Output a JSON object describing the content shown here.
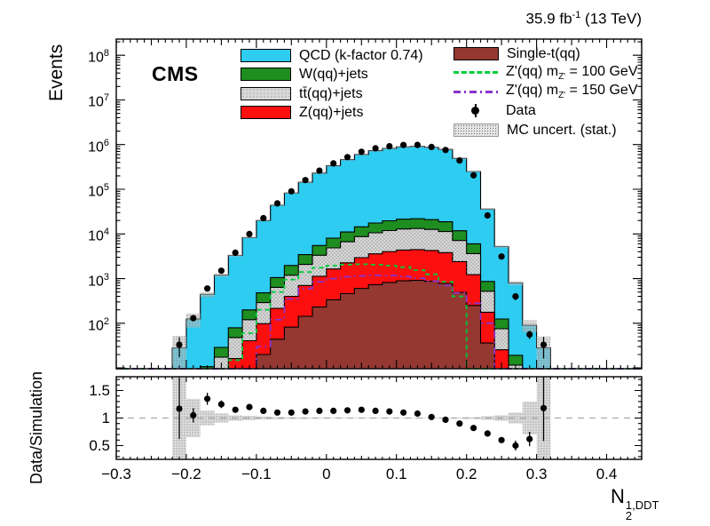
{
  "header": {
    "lumi_prefix": "35.9 fb",
    "lumi_sup": "-1",
    "lumi_suffix": " (13 TeV)",
    "experiment": "CMS"
  },
  "axes": {
    "main_y_title": "Events",
    "ratio_y_title": "Data/Simulation",
    "x_title_base": "N",
    "x_title_sub": "2",
    "x_title_sup": "1,DDT",
    "y_tick_base": "10",
    "y_tick_exponents": [
      8,
      7,
      6,
      5,
      4,
      3,
      2
    ],
    "x_tick_labels": [
      "−0.3",
      "−0.2",
      "−0.1",
      "0",
      "0.1",
      "0.2",
      "0.3",
      "0.4"
    ],
    "x_tick_values": [
      -0.3,
      -0.2,
      -0.1,
      0,
      0.1,
      0.2,
      0.3,
      0.4
    ],
    "ratio_tick_labels": [
      "1.5",
      "1",
      "0.5"
    ],
    "ratio_tick_values": [
      1.5,
      1,
      0.5
    ]
  },
  "legend": {
    "qcd": "QCD (k-factor 0.74)",
    "w_jets": "W(qq)+jets",
    "ttbar": "tt̄(qq)+jets",
    "z_jets": "Z(qq)+jets",
    "single_t": "Single-t(qq)",
    "zp100": {
      "pre": "Z'(qq) m",
      "sub": "Z'",
      "post": " = 100 GeV"
    },
    "zp150": {
      "pre": "Z'(qq) m",
      "sub": "Z'",
      "post": " = 150 GeV"
    },
    "data": "Data",
    "unc": "MC uncert. (stat.)"
  },
  "colors": {
    "qcd": "#2dccf0",
    "w_jets": "#1e8e20",
    "ttbar": "#d8d8d8",
    "ttbar_dot": "#8c8c8c",
    "z_jets": "#fb0f0f",
    "single_t": "#943831",
    "zp100": "#00cc3c",
    "zp150": "#8833cc",
    "data": "#000000",
    "unc": "#c0c0c0",
    "unc_dot": "#6f6f6f",
    "frame": "#000000",
    "unity_line": "#aaaaaa"
  },
  "chart_data": {
    "type": "histogram-stack+ratio",
    "title": "CMS jet substructure observable distribution",
    "x_label": "N2^(1,DDT)",
    "y_label": "Events",
    "ratio_label": "Data/Simulation",
    "y_scale": "log",
    "x_range": [
      -0.3,
      0.45
    ],
    "y_range": [
      9.6,
      230000000
    ],
    "ratio_range": [
      0.25,
      1.75
    ],
    "bin_width": 0.02,
    "bin_centers": [
      -0.21,
      -0.19,
      -0.17,
      -0.15,
      -0.13,
      -0.11,
      -0.09,
      -0.07,
      -0.05,
      -0.03,
      -0.01,
      0.01,
      0.03,
      0.05,
      0.07,
      0.09,
      0.11,
      0.13,
      0.15,
      0.17,
      0.19,
      0.21,
      0.23,
      0.25,
      0.27,
      0.29,
      0.31
    ],
    "mc_total": [
      28,
      124,
      444,
      1200,
      3300,
      8300,
      20000,
      44000,
      82000,
      143000,
      230000,
      336000,
      460000,
      600000,
      730000,
      820000,
      890000,
      910000,
      870000,
      780000,
      490000,
      250000,
      36000,
      5200,
      800,
      90,
      28
    ],
    "mc_fractions": {
      "qcd": 0.976,
      "w_jets": 0.0095,
      "ttbar": 0.0096,
      "z_jets": 0.0039,
      "single_t": 0.001
    },
    "mc_stat_rel_unc": [
      0.85,
      0.35,
      0.13,
      0.08,
      0.05,
      0.035,
      0.025,
      0.02,
      0.015,
      0.012,
      0.01,
      0.009,
      0.008,
      0.008,
      0.008,
      0.008,
      0.008,
      0.008,
      0.008,
      0.01,
      0.012,
      0.018,
      0.03,
      0.05,
      0.1,
      0.3,
      0.8
    ],
    "data": [
      33,
      130,
      600,
      1500,
      3800,
      9960,
      22600,
      48400,
      90200,
      160000,
      260000,
      380000,
      524000,
      690000,
      825000,
      918000,
      979000,
      983000,
      887000,
      757000,
      441000,
      205000,
      25900,
      3120,
      400,
      56,
      33
    ],
    "data_ratio": [
      1.17,
      1.05,
      1.35,
      1.25,
      1.15,
      1.2,
      1.13,
      1.1,
      1.1,
      1.12,
      1.13,
      1.13,
      1.14,
      1.15,
      1.13,
      1.12,
      1.1,
      1.08,
      1.02,
      0.97,
      0.9,
      0.82,
      0.72,
      0.6,
      0.5,
      0.62,
      1.18
    ],
    "ratio_err": [
      0.55,
      0.13,
      0.11,
      0.07,
      0.045,
      0.035,
      0.025,
      0.02,
      0.015,
      0.012,
      0.01,
      0.009,
      0.008,
      0.007,
      0.007,
      0.007,
      0.007,
      0.007,
      0.008,
      0.009,
      0.011,
      0.015,
      0.025,
      0.045,
      0.09,
      0.13,
      0.6
    ],
    "zprime100": [
      0,
      0,
      0,
      0,
      15,
      60,
      200,
      500,
      950,
      1400,
      1750,
      1950,
      2050,
      2100,
      2050,
      1950,
      1800,
      1550,
      1250,
      850,
      400,
      0,
      0,
      0,
      0,
      0,
      0
    ],
    "zprime150": [
      0,
      0,
      0,
      0,
      0,
      0,
      30,
      120,
      350,
      600,
      850,
      1000,
      1100,
      1150,
      1180,
      1170,
      1120,
      1020,
      880,
      700,
      480,
      280,
      100,
      0,
      0,
      0,
      0
    ]
  }
}
